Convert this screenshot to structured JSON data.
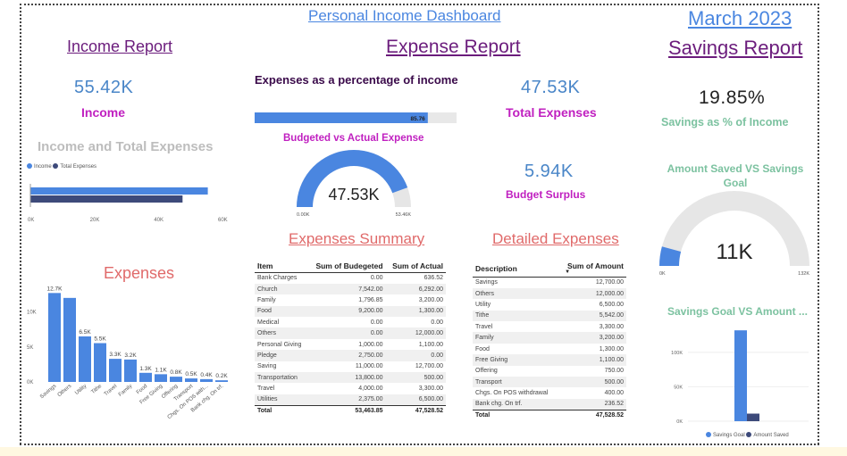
{
  "colors": {
    "blue": "#4a86e0",
    "navy": "#3d4a7a",
    "magenta": "#c020c0",
    "teal": "#7cc2a0",
    "salmon": "#e06a6a",
    "purple": "#6b1c7c"
  },
  "header": {
    "dashboard_title": "Personal Income Dashboard",
    "month": "March 2023"
  },
  "income": {
    "title": "Income Report",
    "value": "55.42K",
    "label": "Income",
    "bar_chart_title": "Income and Total Expenses",
    "legend": [
      "Income",
      "Total Expenses"
    ]
  },
  "expense": {
    "title": "Expense Report",
    "pct_title": "Expenses as a percentage of income",
    "pct_value": "85.76",
    "total_value": "47.53K",
    "total_label": "Total Expenses",
    "surplus_value": "5.94K",
    "surplus_label": "Budget Surplus",
    "gauge_title": "Budgeted vs Actual Expense",
    "gauge_value": "47.53K",
    "gauge_min": "0.00K",
    "gauge_max": "53.46K"
  },
  "savings": {
    "title": "Savings Report",
    "pct_value": "19.85%",
    "pct_label": "Savings as % of Income",
    "gauge_title": "Amount Saved VS Savings Goal",
    "gauge_value": "11K",
    "gauge_min": "0K",
    "gauge_max": "132K",
    "bar_title": "Savings Goal VS Amount ...",
    "legend": [
      "Savings Goal",
      "Amount Saved"
    ]
  },
  "expenses_chart": {
    "title": "Expenses"
  },
  "summary": {
    "title": "Expenses Summary",
    "headers": [
      "Item",
      "Sum of Budegeted",
      "Sum of Actual"
    ],
    "rows": [
      [
        "Bank Charges",
        "0.00",
        "636.52"
      ],
      [
        "Church",
        "7,542.00",
        "6,292.00"
      ],
      [
        "Family",
        "1,796.85",
        "3,200.00"
      ],
      [
        "Food",
        "9,200.00",
        "1,300.00"
      ],
      [
        "Medical",
        "0.00",
        "0.00"
      ],
      [
        "Others",
        "0.00",
        "12,000.00"
      ],
      [
        "Personal Giving",
        "1,000.00",
        "1,100.00"
      ],
      [
        "Pledge",
        "2,750.00",
        "0.00"
      ],
      [
        "Saving",
        "11,000.00",
        "12,700.00"
      ],
      [
        "Transportation",
        "13,800.00",
        "500.00"
      ],
      [
        "Travel",
        "4,000.00",
        "3,300.00"
      ],
      [
        "Utilities",
        "2,375.00",
        "6,500.00"
      ]
    ],
    "total": [
      "Total",
      "53,463.85",
      "47,528.52"
    ]
  },
  "detailed": {
    "title": "Detailed Expenses",
    "headers": [
      "Description",
      "Sum of Amount"
    ],
    "rows": [
      [
        "Savings",
        "12,700.00"
      ],
      [
        "Others",
        "12,000.00"
      ],
      [
        "Utility",
        "6,500.00"
      ],
      [
        "Tithe",
        "5,542.00"
      ],
      [
        "Travel",
        "3,300.00"
      ],
      [
        "Family",
        "3,200.00"
      ],
      [
        "Food",
        "1,300.00"
      ],
      [
        "Free Giving",
        "1,100.00"
      ],
      [
        "Offering",
        "750.00"
      ],
      [
        "Transport",
        "500.00"
      ],
      [
        "Chgs. On POS withdrawal",
        "400.00"
      ],
      [
        "Bank chg. On trf.",
        "236.52"
      ]
    ],
    "total": [
      "Total",
      "47,528.52"
    ]
  },
  "chart_data": [
    {
      "type": "bar",
      "orientation": "horizontal",
      "title": "Income and Total Expenses",
      "categories": [
        "Income",
        "Total Expenses"
      ],
      "values": [
        55420,
        47530
      ],
      "xlim": [
        0,
        60000
      ],
      "ticks": [
        "0K",
        "20K",
        "40K",
        "60K"
      ],
      "legend": "top-left"
    },
    {
      "type": "bar",
      "title": "Expenses",
      "categories": [
        "Savings",
        "Others",
        "Utility",
        "Tithe",
        "Travel",
        "Family",
        "Food",
        "Free Giving",
        "Offering",
        "Transport",
        "Chgs. On POS with...",
        "Bank chg. On trf."
      ],
      "values": [
        12700,
        12000,
        6500,
        5542,
        3300,
        3200,
        1300,
        1100,
        750,
        500,
        400,
        236.52
      ],
      "labels": [
        "12.7K",
        "",
        "6.5K",
        "5.5K",
        "3.3K",
        "3.2K",
        "1.3K",
        "1.1K",
        "0.8K",
        "0.5K",
        "0.4K",
        "0.2K"
      ],
      "ylim": [
        0,
        13000
      ],
      "ticks": [
        "0K",
        "5K",
        "10K"
      ]
    },
    {
      "type": "bar",
      "title": "Expenses as a percentage of income",
      "values": [
        85.76
      ],
      "xlim": [
        0,
        100
      ]
    },
    {
      "type": "gauge",
      "title": "Budgeted vs Actual Expense",
      "value": 47530,
      "min": 0,
      "max": 53460
    },
    {
      "type": "gauge",
      "title": "Amount Saved VS Savings Goal",
      "value": 11000,
      "min": 0,
      "max": 132000
    },
    {
      "type": "bar",
      "title": "Savings Goal VS Amount ...",
      "series": [
        {
          "name": "Savings Goal",
          "values": [
            132000
          ]
        },
        {
          "name": "Amount Saved",
          "values": [
            11000
          ]
        }
      ],
      "ylim": [
        0,
        140000
      ],
      "ticks": [
        "0K",
        "50K",
        "100K"
      ],
      "legend": "bottom"
    }
  ]
}
